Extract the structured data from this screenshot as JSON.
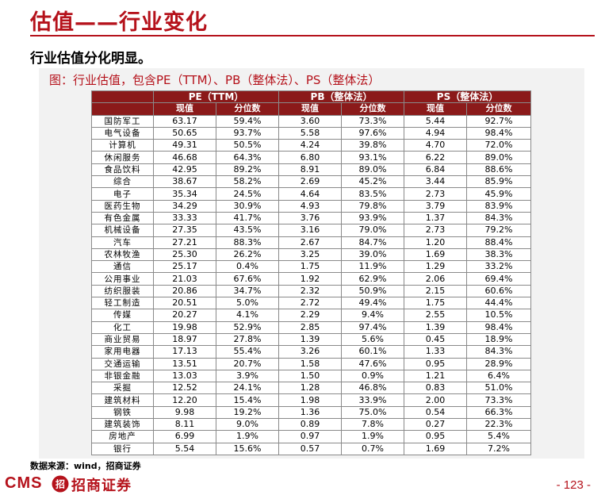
{
  "slide_title": "估值——行业变化",
  "subtitle": "行业估值分化明显。",
  "caption": "图：行业估值，包含PE（TTM）、PB（整体法）、PS（整体法）",
  "table": {
    "groups": [
      "PE（TTM）",
      "PB（整体法）",
      "PS（整体法）"
    ],
    "subheaders": [
      "现值",
      "分位数",
      "现值",
      "分位数",
      "现值",
      "分位数"
    ],
    "rows": [
      {
        "industry": "国防军工",
        "pe": "63.17",
        "pe_pct": "59.4%",
        "pb": "3.60",
        "pb_pct": "73.3%",
        "ps": "5.44",
        "ps_pct": "92.7%"
      },
      {
        "industry": "电气设备",
        "pe": "50.65",
        "pe_pct": "93.7%",
        "pb": "5.58",
        "pb_pct": "97.6%",
        "ps": "4.94",
        "ps_pct": "98.4%"
      },
      {
        "industry": "计算机",
        "pe": "49.31",
        "pe_pct": "50.5%",
        "pb": "4.24",
        "pb_pct": "39.8%",
        "ps": "4.70",
        "ps_pct": "72.0%"
      },
      {
        "industry": "休闲服务",
        "pe": "46.68",
        "pe_pct": "64.3%",
        "pb": "6.80",
        "pb_pct": "93.1%",
        "ps": "6.22",
        "ps_pct": "89.0%"
      },
      {
        "industry": "食品饮料",
        "pe": "42.95",
        "pe_pct": "89.2%",
        "pb": "8.91",
        "pb_pct": "89.0%",
        "ps": "6.84",
        "ps_pct": "88.6%"
      },
      {
        "industry": "综合",
        "pe": "38.67",
        "pe_pct": "58.2%",
        "pb": "2.69",
        "pb_pct": "45.2%",
        "ps": "3.44",
        "ps_pct": "85.9%"
      },
      {
        "industry": "电子",
        "pe": "35.34",
        "pe_pct": "24.5%",
        "pb": "4.64",
        "pb_pct": "83.5%",
        "ps": "2.73",
        "ps_pct": "45.9%"
      },
      {
        "industry": "医药生物",
        "pe": "34.29",
        "pe_pct": "30.9%",
        "pb": "4.93",
        "pb_pct": "79.8%",
        "ps": "3.79",
        "ps_pct": "83.9%"
      },
      {
        "industry": "有色金属",
        "pe": "33.33",
        "pe_pct": "41.7%",
        "pb": "3.76",
        "pb_pct": "93.9%",
        "ps": "1.37",
        "ps_pct": "84.3%"
      },
      {
        "industry": "机械设备",
        "pe": "27.35",
        "pe_pct": "43.5%",
        "pb": "3.16",
        "pb_pct": "79.0%",
        "ps": "2.73",
        "ps_pct": "79.2%"
      },
      {
        "industry": "汽车",
        "pe": "27.21",
        "pe_pct": "88.3%",
        "pb": "2.67",
        "pb_pct": "84.7%",
        "ps": "1.20",
        "ps_pct": "88.4%"
      },
      {
        "industry": "农林牧渔",
        "pe": "25.30",
        "pe_pct": "26.2%",
        "pb": "3.25",
        "pb_pct": "39.0%",
        "ps": "1.69",
        "ps_pct": "38.3%"
      },
      {
        "industry": "通信",
        "pe": "25.17",
        "pe_pct": "0.4%",
        "pb": "1.75",
        "pb_pct": "11.9%",
        "ps": "1.29",
        "ps_pct": "33.2%"
      },
      {
        "industry": "公用事业",
        "pe": "21.03",
        "pe_pct": "67.6%",
        "pb": "1.92",
        "pb_pct": "62.9%",
        "ps": "2.06",
        "ps_pct": "69.4%"
      },
      {
        "industry": "纺织服装",
        "pe": "20.86",
        "pe_pct": "34.7%",
        "pb": "2.32",
        "pb_pct": "50.9%",
        "ps": "2.15",
        "ps_pct": "60.6%"
      },
      {
        "industry": "轻工制造",
        "pe": "20.51",
        "pe_pct": "5.0%",
        "pb": "2.72",
        "pb_pct": "49.4%",
        "ps": "1.75",
        "ps_pct": "44.4%"
      },
      {
        "industry": "传媒",
        "pe": "20.27",
        "pe_pct": "4.1%",
        "pb": "2.29",
        "pb_pct": "9.4%",
        "ps": "2.55",
        "ps_pct": "10.5%"
      },
      {
        "industry": "化工",
        "pe": "19.98",
        "pe_pct": "52.9%",
        "pb": "2.85",
        "pb_pct": "97.4%",
        "ps": "1.39",
        "ps_pct": "98.4%"
      },
      {
        "industry": "商业贸易",
        "pe": "18.97",
        "pe_pct": "27.8%",
        "pb": "1.39",
        "pb_pct": "5.6%",
        "ps": "0.45",
        "ps_pct": "18.9%"
      },
      {
        "industry": "家用电器",
        "pe": "17.13",
        "pe_pct": "55.4%",
        "pb": "3.26",
        "pb_pct": "60.1%",
        "ps": "1.33",
        "ps_pct": "84.3%"
      },
      {
        "industry": "交通运输",
        "pe": "13.51",
        "pe_pct": "20.7%",
        "pb": "1.58",
        "pb_pct": "47.6%",
        "ps": "0.95",
        "ps_pct": "28.9%"
      },
      {
        "industry": "非银金融",
        "pe": "13.03",
        "pe_pct": "3.9%",
        "pb": "1.50",
        "pb_pct": "0.9%",
        "ps": "1.21",
        "ps_pct": "6.4%"
      },
      {
        "industry": "采掘",
        "pe": "12.52",
        "pe_pct": "24.1%",
        "pb": "1.28",
        "pb_pct": "46.8%",
        "ps": "0.83",
        "ps_pct": "51.0%"
      },
      {
        "industry": "建筑材料",
        "pe": "12.20",
        "pe_pct": "15.4%",
        "pb": "1.98",
        "pb_pct": "33.9%",
        "ps": "2.00",
        "ps_pct": "73.3%"
      },
      {
        "industry": "钢铁",
        "pe": "9.98",
        "pe_pct": "19.2%",
        "pb": "1.36",
        "pb_pct": "75.0%",
        "ps": "0.54",
        "ps_pct": "66.3%"
      },
      {
        "industry": "建筑装饰",
        "pe": "8.11",
        "pe_pct": "9.0%",
        "pb": "0.89",
        "pb_pct": "7.8%",
        "ps": "0.27",
        "ps_pct": "22.3%"
      },
      {
        "industry": "房地产",
        "pe": "6.99",
        "pe_pct": "1.9%",
        "pb": "0.97",
        "pb_pct": "1.9%",
        "ps": "0.95",
        "ps_pct": "5.4%"
      },
      {
        "industry": "银行",
        "pe": "5.54",
        "pe_pct": "15.6%",
        "pb": "0.57",
        "pb_pct": "0.7%",
        "ps": "1.69",
        "ps_pct": "7.2%"
      }
    ]
  },
  "source": "数据来源：wind，招商证券",
  "logo": {
    "cms": "CMS",
    "mark": "招",
    "cn": "招商证券"
  },
  "page_number": "- 123 -",
  "colors": {
    "accent": "#b5121b",
    "header_fill": "#8b1a1a",
    "panel_bg": "#f2f2f2"
  }
}
